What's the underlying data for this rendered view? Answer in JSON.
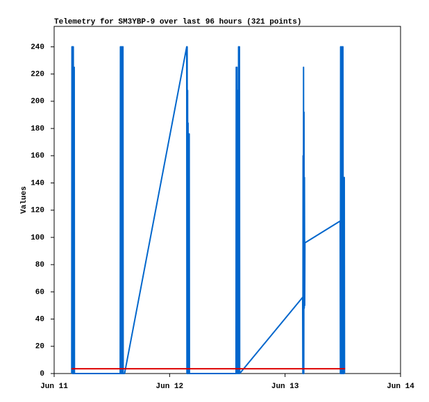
{
  "chart_data": {
    "type": "line",
    "title": "Telemetry for SM3YBP-9 over last 96 hours (321 points)",
    "y_label": "Values",
    "xlim": [
      11,
      14
    ],
    "xticks": [
      {
        "value": 11,
        "label": "Jun 11"
      },
      {
        "value": 12,
        "label": "Jun 12"
      },
      {
        "value": 13,
        "label": "Jun 13"
      },
      {
        "value": 14,
        "label": "Jun 14"
      }
    ],
    "ylim": [
      0,
      255
    ],
    "yticks": [
      0,
      20,
      40,
      60,
      80,
      100,
      120,
      140,
      160,
      180,
      200,
      220,
      240
    ],
    "grid": false,
    "series": [
      {
        "color": "#0066cc",
        "x": [
          11.152,
          11.154,
          11.158,
          11.16,
          11.164,
          11.166,
          11.17,
          11.174,
          11.176,
          11.572,
          11.574,
          11.578,
          11.58,
          11.586,
          11.588,
          11.594,
          11.596,
          11.598,
          11.61,
          12.148,
          12.15,
          12.152,
          12.154,
          12.156,
          12.158,
          12.16,
          12.162,
          12.166,
          12.168,
          12.17,
          12.172,
          12.575,
          12.577,
          12.581,
          12.583,
          12.587,
          12.589,
          12.595,
          12.597,
          12.601,
          12.605,
          12.607,
          13.152,
          13.154,
          13.156,
          13.158,
          13.16,
          13.162,
          13.164,
          13.166,
          13.168,
          13.17,
          13.172,
          13.477,
          13.479,
          13.481,
          13.485,
          13.487,
          13.493,
          13.495,
          13.499,
          13.501,
          13.505,
          13.509,
          13.511,
          13.513,
          13.515
        ],
        "values": [
          0,
          240,
          0,
          240,
          0,
          240,
          0,
          225,
          0,
          0,
          240,
          0,
          240,
          0,
          240,
          0,
          240,
          0,
          0,
          240,
          0,
          240,
          0,
          208,
          0,
          184,
          0,
          176,
          0,
          176,
          0,
          0,
          225,
          0,
          225,
          0,
          208,
          0,
          240,
          0,
          240,
          0,
          56,
          0,
          160,
          0,
          225,
          0,
          192,
          48,
          144,
          50,
          96,
          112,
          0,
          240,
          0,
          240,
          0,
          240,
          0,
          240,
          0,
          144,
          0,
          144,
          0
        ]
      },
      {
        "color": "#dd0000",
        "x": [
          11.15,
          13.52
        ],
        "values": [
          3.5,
          3.5
        ]
      }
    ]
  }
}
